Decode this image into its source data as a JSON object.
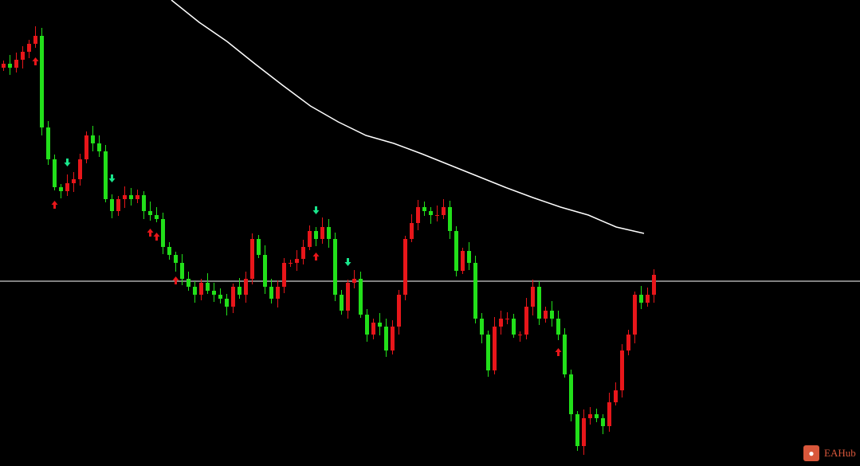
{
  "chart_data": {
    "type": "candlestick",
    "title": "",
    "grid": false,
    "colors": {
      "background": "#000000",
      "down_candle": "#22e01a",
      "up_candle": "#e8161a",
      "moving_average": "#ffffff",
      "level_line": "#ffffff",
      "buy_arrow": "#e8161a",
      "sell_arrow": "#19e68c"
    },
    "closes": [
      505,
      500,
      510,
      520,
      530,
      540,
      425,
      385,
      350,
      345,
      355,
      360,
      385,
      415,
      405,
      395,
      335,
      320,
      335,
      340,
      335,
      340,
      320,
      315,
      310,
      275,
      265,
      255,
      235,
      225,
      215,
      230,
      220,
      215,
      210,
      200,
      225,
      215,
      235,
      285,
      265,
      225,
      210,
      225,
      255,
      255,
      260,
      275,
      295,
      285,
      300,
      285,
      215,
      195,
      230,
      235,
      190,
      165,
      180,
      175,
      145,
      175,
      215,
      285,
      305,
      325,
      320,
      315,
      315,
      325,
      295,
      245,
      270,
      255,
      185,
      165,
      120,
      175,
      185,
      185,
      165,
      165,
      200,
      225,
      185,
      195,
      185,
      165,
      115,
      65,
      25,
      60,
      65,
      60,
      50,
      80,
      95,
      145,
      165,
      215,
      205,
      215,
      240
    ],
    "moving_average": [
      585,
      557,
      533,
      505,
      478,
      452,
      432,
      415,
      405,
      392,
      378,
      364,
      350,
      337,
      325,
      315,
      300,
      292
    ],
    "level": 232,
    "signals": [
      {
        "index": 5,
        "type": "buy"
      },
      {
        "index": 8,
        "type": "buy"
      },
      {
        "index": 10,
        "type": "sell"
      },
      {
        "index": 17,
        "type": "sell"
      },
      {
        "index": 23,
        "type": "buy"
      },
      {
        "index": 24,
        "type": "buy"
      },
      {
        "index": 27,
        "type": "buy"
      },
      {
        "index": 49,
        "type": "buy"
      },
      {
        "index": 49,
        "type": "sell"
      },
      {
        "index": 54,
        "type": "sell"
      },
      {
        "index": 87,
        "type": "buy"
      }
    ]
  },
  "watermark": {
    "text": "EAHub"
  }
}
